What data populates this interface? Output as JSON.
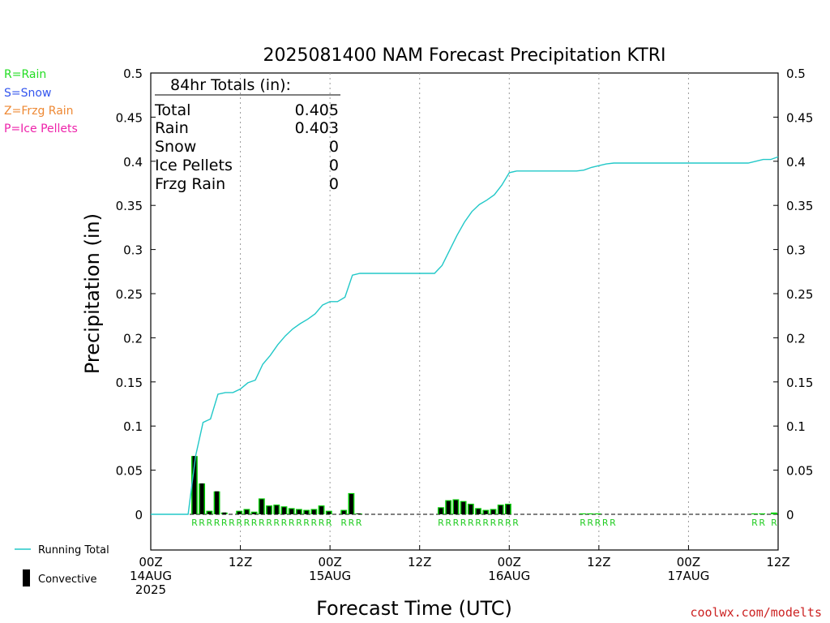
{
  "title": "2025081400 NAM Forecast Precipitation KTRI",
  "ylabel": "Precipitation (in)",
  "xlabel": "Forecast Time (UTC)",
  "credit": "coolwx.com/modelts",
  "type_legend": [
    {
      "text": "R=Rain",
      "color": "#22dd22"
    },
    {
      "text": "S=Snow",
      "color": "#3355ee"
    },
    {
      "text": "Z=Frzg Rain",
      "color": "#ee8833"
    },
    {
      "text": "P=Ice Pellets",
      "color": "#ee22aa"
    }
  ],
  "totals": {
    "header": "84hr Totals (in):",
    "rows": [
      {
        "label": "Total",
        "value": "0.405"
      },
      {
        "label": "Rain",
        "value": "0.403"
      },
      {
        "label": "Snow",
        "value": "0"
      },
      {
        "label": "Ice Pellets",
        "value": "0"
      },
      {
        "label": "Frzg Rain",
        "value": "0"
      }
    ]
  },
  "series_legend": {
    "running_total": "Running Total",
    "convective": "Convective"
  },
  "colors": {
    "running_total": "#22c8c8",
    "precip_bar": "#00cc00",
    "convective_bar": "#000000",
    "grid": "#999999"
  },
  "chart_data": {
    "type": "bar",
    "x_unit": "forecast hour",
    "xlim": [
      0,
      84
    ],
    "ylim": [
      0,
      0.5
    ],
    "ylim_axis_bottom": -0.05,
    "yticks": [
      0,
      0.05,
      0.1,
      0.15,
      0.2,
      0.25,
      0.3,
      0.35,
      0.4,
      0.45,
      0.5
    ],
    "ytick_labels": [
      "0",
      "0.05",
      "0.1",
      "0.15",
      "0.2",
      "0.25",
      "0.3",
      "0.35",
      "0.4",
      "0.45",
      "0.5"
    ],
    "xticks": [
      {
        "x": 0,
        "label": [
          "00Z",
          "14AUG",
          "2025"
        ]
      },
      {
        "x": 12,
        "label": [
          "12Z"
        ]
      },
      {
        "x": 24,
        "label": [
          "00Z",
          "15AUG"
        ]
      },
      {
        "x": 36,
        "label": [
          "12Z"
        ]
      },
      {
        "x": 48,
        "label": [
          "00Z",
          "16AUG"
        ]
      },
      {
        "x": 60,
        "label": [
          "12Z"
        ]
      },
      {
        "x": 72,
        "label": [
          "00Z",
          "17AUG"
        ]
      },
      {
        "x": 84,
        "label": [
          "12Z"
        ]
      }
    ],
    "vgrid_x": [
      12,
      24,
      36,
      48,
      60,
      72
    ],
    "hourly": [
      {
        "x": 6,
        "precip": 0.066,
        "convective": 0.066
      },
      {
        "x": 7,
        "precip": 0.035,
        "convective": 0.035
      },
      {
        "x": 8,
        "precip": 0.004,
        "convective": 0.003
      },
      {
        "x": 9,
        "precip": 0.026,
        "convective": 0.026
      },
      {
        "x": 10,
        "precip": 0.002,
        "convective": 0.002
      },
      {
        "x": 12,
        "precip": 0.004,
        "convective": 0.003
      },
      {
        "x": 13,
        "precip": 0.006,
        "convective": 0.005
      },
      {
        "x": 14,
        "precip": 0.003,
        "convective": 0.002
      },
      {
        "x": 15,
        "precip": 0.018,
        "convective": 0.017
      },
      {
        "x": 16,
        "precip": 0.01,
        "convective": 0.009
      },
      {
        "x": 17,
        "precip": 0.011,
        "convective": 0.01
      },
      {
        "x": 18,
        "precip": 0.009,
        "convective": 0.008
      },
      {
        "x": 19,
        "precip": 0.007,
        "convective": 0.006
      },
      {
        "x": 20,
        "precip": 0.006,
        "convective": 0.005
      },
      {
        "x": 21,
        "precip": 0.005,
        "convective": 0.004
      },
      {
        "x": 22,
        "precip": 0.006,
        "convective": 0.005
      },
      {
        "x": 23,
        "precip": 0.01,
        "convective": 0.009
      },
      {
        "x": 24,
        "precip": 0.004,
        "convective": 0.003
      },
      {
        "x": 26,
        "precip": 0.005,
        "convective": 0.004
      },
      {
        "x": 27,
        "precip": 0.024,
        "convective": 0.023
      },
      {
        "x": 28,
        "precip": 0.001,
        "convective": 0.001
      },
      {
        "x": 39,
        "precip": 0.008,
        "convective": 0.007
      },
      {
        "x": 40,
        "precip": 0.016,
        "convective": 0.015
      },
      {
        "x": 41,
        "precip": 0.017,
        "convective": 0.016
      },
      {
        "x": 42,
        "precip": 0.015,
        "convective": 0.014
      },
      {
        "x": 43,
        "precip": 0.012,
        "convective": 0.011
      },
      {
        "x": 44,
        "precip": 0.007,
        "convective": 0.006
      },
      {
        "x": 45,
        "precip": 0.005,
        "convective": 0.004
      },
      {
        "x": 46,
        "precip": 0.006,
        "convective": 0.005
      },
      {
        "x": 47,
        "precip": 0.011,
        "convective": 0.01
      },
      {
        "x": 48,
        "precip": 0.012,
        "convective": 0.011
      },
      {
        "x": 58,
        "precip": 0.001,
        "convective": 0.0
      },
      {
        "x": 59,
        "precip": 0.001,
        "convective": 0.0
      },
      {
        "x": 60,
        "precip": 0.001,
        "convective": 0.0
      },
      {
        "x": 81,
        "precip": 0.001,
        "convective": 0.0
      },
      {
        "x": 82,
        "precip": 0.001,
        "convective": 0.0
      },
      {
        "x": 83.6,
        "precip": 0.002,
        "convective": 0.0
      }
    ],
    "running_total": [
      [
        0,
        0
      ],
      [
        4,
        0
      ],
      [
        5,
        0.0
      ],
      [
        6,
        0.066
      ],
      [
        7,
        0.104
      ],
      [
        8,
        0.108
      ],
      [
        9,
        0.136
      ],
      [
        10,
        0.138
      ],
      [
        11,
        0.138
      ],
      [
        12,
        0.142
      ],
      [
        13,
        0.149
      ],
      [
        14,
        0.152
      ],
      [
        15,
        0.17
      ],
      [
        16,
        0.18
      ],
      [
        17,
        0.192
      ],
      [
        18,
        0.202
      ],
      [
        19,
        0.21
      ],
      [
        20,
        0.216
      ],
      [
        21,
        0.221
      ],
      [
        22,
        0.227
      ],
      [
        23,
        0.237
      ],
      [
        24,
        0.241
      ],
      [
        25,
        0.241
      ],
      [
        26,
        0.246
      ],
      [
        27,
        0.271
      ],
      [
        28,
        0.273
      ],
      [
        29,
        0.273
      ],
      [
        38,
        0.273
      ],
      [
        39,
        0.282
      ],
      [
        40,
        0.299
      ],
      [
        41,
        0.316
      ],
      [
        42,
        0.331
      ],
      [
        43,
        0.343
      ],
      [
        44,
        0.351
      ],
      [
        45,
        0.356
      ],
      [
        46,
        0.362
      ],
      [
        47,
        0.373
      ],
      [
        48,
        0.387
      ],
      [
        49,
        0.389
      ],
      [
        57,
        0.389
      ],
      [
        58,
        0.39
      ],
      [
        59,
        0.393
      ],
      [
        60,
        0.395
      ],
      [
        61,
        0.397
      ],
      [
        62,
        0.398
      ],
      [
        80,
        0.398
      ],
      [
        81,
        0.4
      ],
      [
        82,
        0.402
      ],
      [
        83,
        0.402
      ],
      [
        84,
        0.405
      ]
    ],
    "type_label_groups": [
      {
        "x_start": 6,
        "text": "RRRRRR"
      },
      {
        "x_start": 12,
        "text": "RRRRRRRRRRRRR"
      },
      {
        "x_start": 26,
        "text": "RRR"
      },
      {
        "x_start": 39,
        "text": "RRRRRRRRRRR"
      },
      {
        "x_start": 58,
        "text": "RRRRR"
      },
      {
        "x_start": 81,
        "text": "RR"
      },
      {
        "x_start": 83.6,
        "text": "R"
      }
    ]
  }
}
